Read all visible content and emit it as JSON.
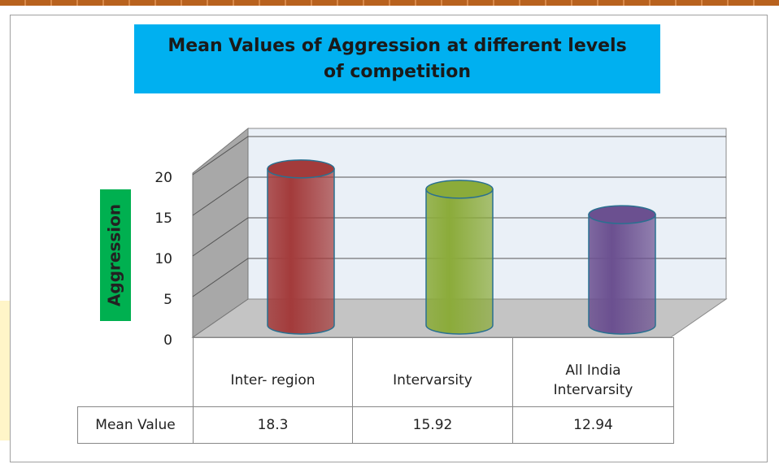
{
  "chart_data": {
    "type": "bar3d",
    "title": "Mean Values of Aggression at different levels of competition",
    "ylabel": "Aggression",
    "categories": [
      "Inter- region",
      "Intervarsity",
      "All India Intervarsity"
    ],
    "series": [
      {
        "name": "Mean Value",
        "values": [
          18.3,
          15.92,
          12.94
        ]
      }
    ],
    "colors": [
      "#a33b3b",
      "#8bab3a",
      "#6b5090"
    ],
    "ylim": [
      0,
      20
    ],
    "yticks": [
      0,
      5,
      10,
      15,
      20
    ],
    "grid": true
  }
}
